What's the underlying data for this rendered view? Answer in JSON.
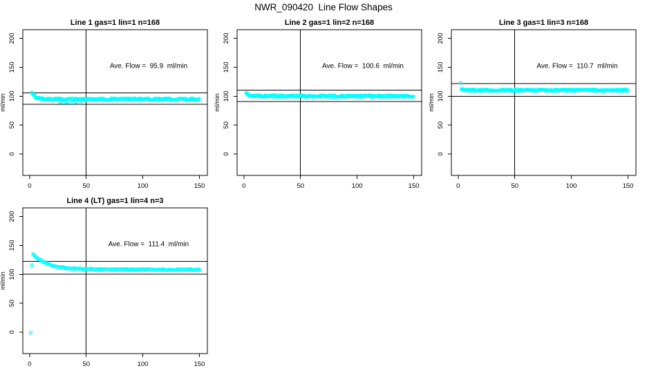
{
  "page": {
    "title": "NWR_090420  Line Flow Shapes",
    "background": "#ffffff"
  },
  "style": {
    "point_color": "#00ffff",
    "axis_color": "#000000",
    "text_color": "#000000"
  },
  "axes": {
    "x_ticks": [
      0,
      50,
      100,
      150
    ],
    "y_ticks": [
      0,
      50,
      100,
      150,
      200
    ],
    "x_domain": [
      -6,
      157
    ],
    "y_domain": [
      -37,
      215
    ],
    "ylabel": "ml/min",
    "xlabel": "",
    "vline_x": 50,
    "grid": false,
    "legend": "none"
  },
  "chart_data": [
    {
      "type": "scatter",
      "title": "Line 1 gas=1 lin=1 n=168",
      "line": 1,
      "gas": 1,
      "lin": 1,
      "n": 168,
      "ave_flow": 95.9,
      "ave_flow_label": "Ave. Flow =  95.9  ml/min",
      "ref_lines": [
        105.5,
        86.3
      ],
      "series": {
        "x_start": 2,
        "x_end": 150,
        "step": 0.75,
        "base": 94.8,
        "amp": 10.5,
        "tau": 3.5,
        "jitter": 1.7
      },
      "outliers": [
        {
          "x": 27,
          "y": 89.5
        },
        {
          "x": 30,
          "y": 89.0
        },
        {
          "x": 33,
          "y": 89.5
        },
        {
          "x": 37,
          "y": 89.0
        },
        {
          "x": 41,
          "y": 89.5
        },
        {
          "x": 45,
          "y": 89.0
        }
      ]
    },
    {
      "type": "scatter",
      "title": "Line 2 gas=1 lin=2 n=168",
      "line": 2,
      "gas": 1,
      "lin": 2,
      "n": 168,
      "ave_flow": 100.6,
      "ave_flow_label": "Ave. Flow =  100.6  ml/min",
      "ref_lines": [
        110.7,
        90.5
      ],
      "series": {
        "x_start": 2,
        "x_end": 150,
        "step": 0.75,
        "base": 100.2,
        "amp": 4.0,
        "tau": 3.0,
        "jitter": 1.7
      },
      "outliers": []
    },
    {
      "type": "scatter",
      "title": "Line 3 gas=1 lin=3 n=168",
      "line": 3,
      "gas": 1,
      "lin": 3,
      "n": 168,
      "ave_flow": 110.7,
      "ave_flow_label": "Ave. Flow =  110.7  ml/min",
      "ref_lines": [
        121.8,
        99.6
      ],
      "series": {
        "x_start": 2.8,
        "x_end": 150,
        "step": 0.75,
        "base": 110.4,
        "amp": 2.5,
        "tau": 2.5,
        "jitter": 1.6
      },
      "outliers": [
        {
          "x": 2,
          "y": 123
        }
      ]
    },
    {
      "type": "scatter",
      "title": "Line 4 (LT) gas=1 lin=4 n=3",
      "line": 4,
      "gas": 1,
      "lin": 4,
      "n": 3,
      "ave_flow": 111.4,
      "ave_flow_label": "Ave. Flow =  111.4  ml/min",
      "ref_lines": [
        122.5,
        100.3
      ],
      "series": {
        "x_start": 3,
        "x_end": 150,
        "step": 1.0,
        "base": 108.3,
        "amp": 27.0,
        "tau": 13.0,
        "jitter": 1.3
      },
      "outliers": [
        {
          "x": 1,
          "y": -1
        },
        {
          "x": 2,
          "y": 116
        }
      ]
    }
  ]
}
